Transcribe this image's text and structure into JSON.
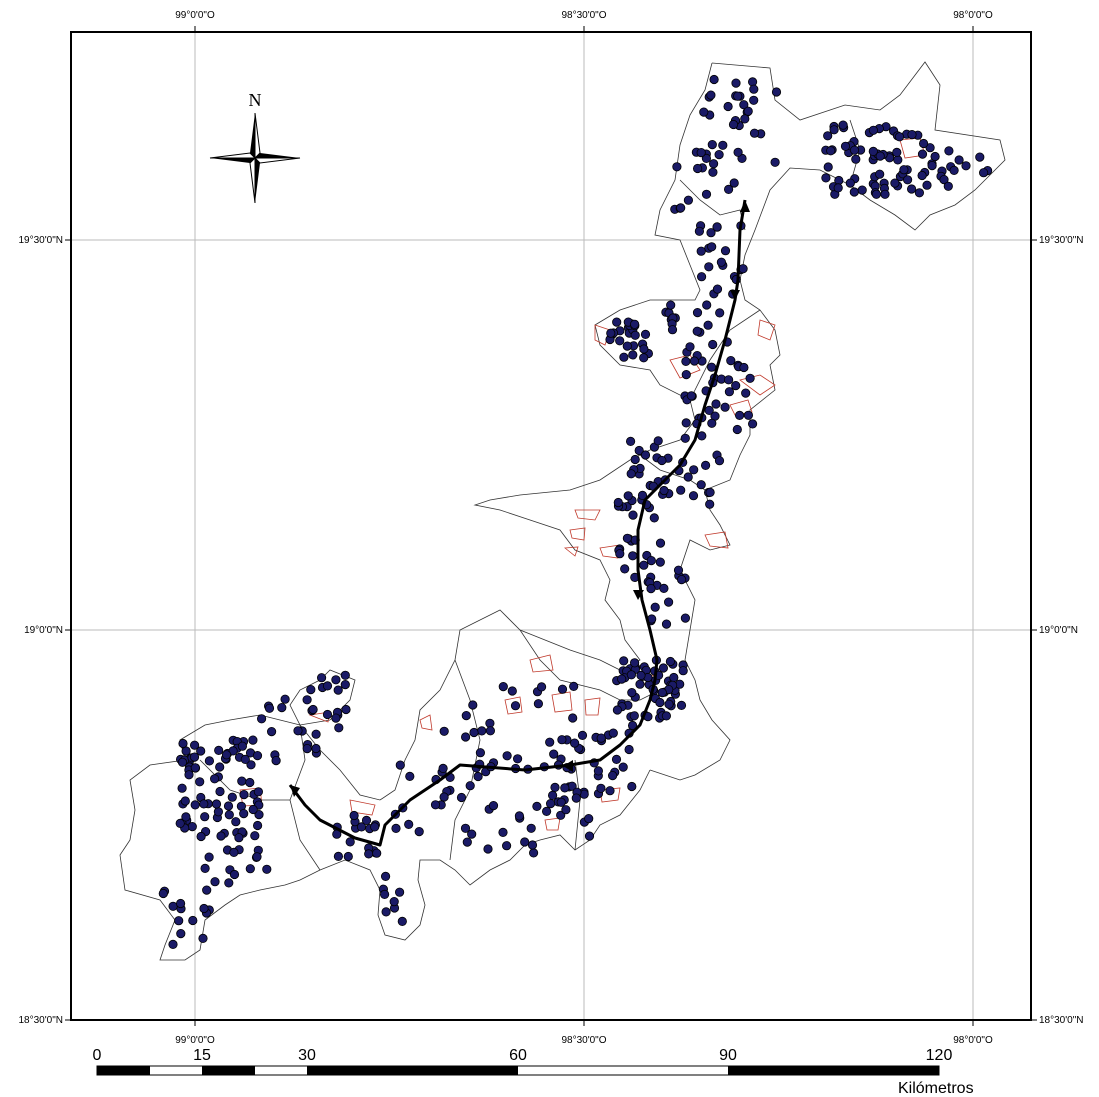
{
  "graticule": {
    "top": [
      "99°0'0\"O",
      "98°30'0\"O",
      "98°0'0\"O"
    ],
    "bottom": [
      "99°0'0\"O",
      "98°30'0\"O",
      "98°0'0\"O"
    ],
    "left": [
      "19°30'0\"N",
      "19°0'0\"N",
      "18°30'0\"N"
    ],
    "right": [
      "19°30'0\"N",
      "19°0'0\"N",
      "18°30'0\"N"
    ]
  },
  "north_arrow": {
    "label": "N"
  },
  "scale_bar": {
    "ticks": [
      "0",
      "15",
      "30",
      "60",
      "90",
      "120"
    ],
    "unit": "Kilómetros"
  },
  "colors": {
    "point_fill": "#1a1a66",
    "point_stroke": "#000000",
    "boundary": "#333333",
    "urban_outline": "#c0392b",
    "route": "#000000",
    "graticule": "#bbbbbb"
  },
  "icons": {
    "north_arrow": "compass-rose-icon"
  }
}
